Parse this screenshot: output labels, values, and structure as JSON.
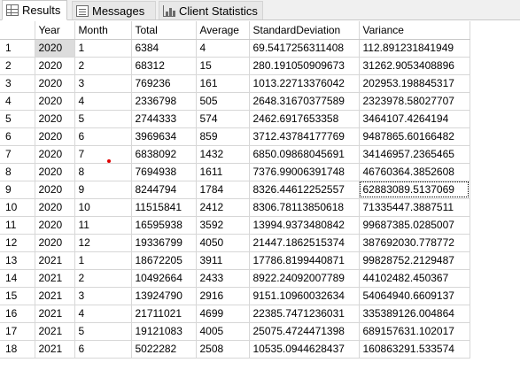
{
  "tabs": [
    {
      "label": "Results",
      "icon": "grid-icon",
      "active": true
    },
    {
      "label": "Messages",
      "icon": "messages-icon",
      "active": false
    },
    {
      "label": "Client Statistics",
      "icon": "statistics-icon",
      "active": false
    }
  ],
  "grid": {
    "columns": [
      "Year",
      "Month",
      "Total",
      "Average",
      "StandardDeviation",
      "Variance"
    ],
    "rows": [
      [
        "1",
        "2020",
        "1",
        "6384",
        "4",
        "69.5417256311408",
        "112.891231841949"
      ],
      [
        "2",
        "2020",
        "2",
        "68312",
        "15",
        "280.191050909673",
        "31262.9053408896"
      ],
      [
        "3",
        "2020",
        "3",
        "769236",
        "161",
        "1013.22713376042",
        "202953.198845317"
      ],
      [
        "4",
        "2020",
        "4",
        "2336798",
        "505",
        "2648.31670377589",
        "2323978.58027707"
      ],
      [
        "5",
        "2020",
        "5",
        "2744333",
        "574",
        "2462.6917653358",
        "3464107.4264194"
      ],
      [
        "6",
        "2020",
        "6",
        "3969634",
        "859",
        "3712.43784177769",
        "9487865.60166482"
      ],
      [
        "7",
        "2020",
        "7",
        "6838092",
        "1432",
        "6850.09868045691",
        "34146957.2365465"
      ],
      [
        "8",
        "2020",
        "8",
        "7694938",
        "1611",
        "7376.99006391748",
        "46760364.3852608"
      ],
      [
        "9",
        "2020",
        "9",
        "8244794",
        "1784",
        "8326.44612252557",
        "62883089.5137069"
      ],
      [
        "10",
        "2020",
        "10",
        "11515841",
        "2412",
        "8306.78113850618",
        "71335447.3887511"
      ],
      [
        "11",
        "2020",
        "11",
        "16595938",
        "3592",
        "13994.9373480842",
        "99687385.0285007"
      ],
      [
        "12",
        "2020",
        "12",
        "19336799",
        "4050",
        "21447.1862515374",
        "387692030.778772"
      ],
      [
        "13",
        "2021",
        "1",
        "18672205",
        "3911",
        "17786.8199440871",
        "99828752.2129487"
      ],
      [
        "14",
        "2021",
        "2",
        "10492664",
        "2433",
        "8922.24092007789",
        "44102482.450367"
      ],
      [
        "15",
        "2021",
        "3",
        "13924790",
        "2916",
        "9151.10960032634",
        "54064940.6609137"
      ],
      [
        "16",
        "2021",
        "4",
        "21711021",
        "4699",
        "22385.7471236031",
        "335389126.004864"
      ],
      [
        "17",
        "2021",
        "5",
        "19121083",
        "4005",
        "25075.4724471398",
        "689157631.102017"
      ],
      [
        "18",
        "2021",
        "6",
        "5022282",
        "2508",
        "10535.0944628437",
        "160863291.533574"
      ]
    ]
  },
  "colors": {
    "tab_background": "#f0f0f0",
    "gridline": "#d7d7d7",
    "selected_cell": "#dcdcdc",
    "marker": "#e00000"
  }
}
